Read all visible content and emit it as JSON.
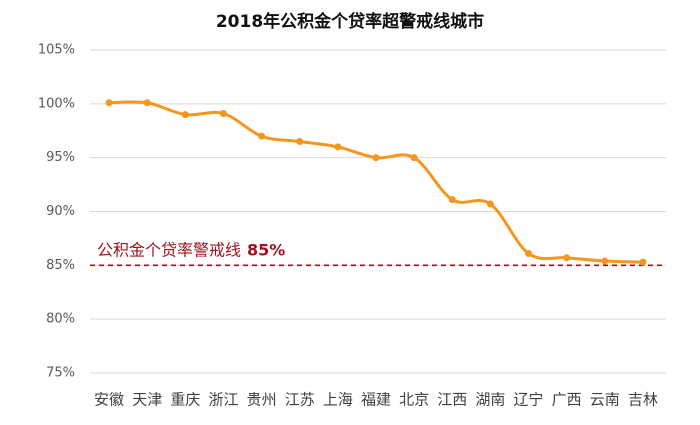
{
  "chart_data": {
    "type": "line",
    "title": "2018年公积金个贷率超警戒线城市",
    "categories": [
      "安徽",
      "天津",
      "重庆",
      "浙江",
      "贵州",
      "江苏",
      "上海",
      "福建",
      "北京",
      "江西",
      "湖南",
      "辽宁",
      "广西",
      "云南",
      "吉林"
    ],
    "values": [
      100.1,
      100.1,
      99.0,
      99.1,
      97.0,
      96.5,
      96.0,
      95.0,
      95.0,
      91.1,
      90.7,
      86.1,
      85.7,
      85.4,
      85.3
    ],
    "color": "#f5961e",
    "ylim": [
      75,
      105
    ],
    "yticks": [
      {
        "value": 75,
        "label": "75%"
      },
      {
        "value": 80,
        "label": "80%"
      },
      {
        "value": 85,
        "label": "85%"
      },
      {
        "value": 90,
        "label": "90%"
      },
      {
        "value": 95,
        "label": "95%"
      },
      {
        "value": 100,
        "label": "100%"
      },
      {
        "value": 105,
        "label": "105%"
      }
    ],
    "grid": true,
    "threshold": {
      "label": "公积金个贷率警戒线",
      "value": 85,
      "value_label": "85%",
      "color": "#a01420"
    }
  }
}
